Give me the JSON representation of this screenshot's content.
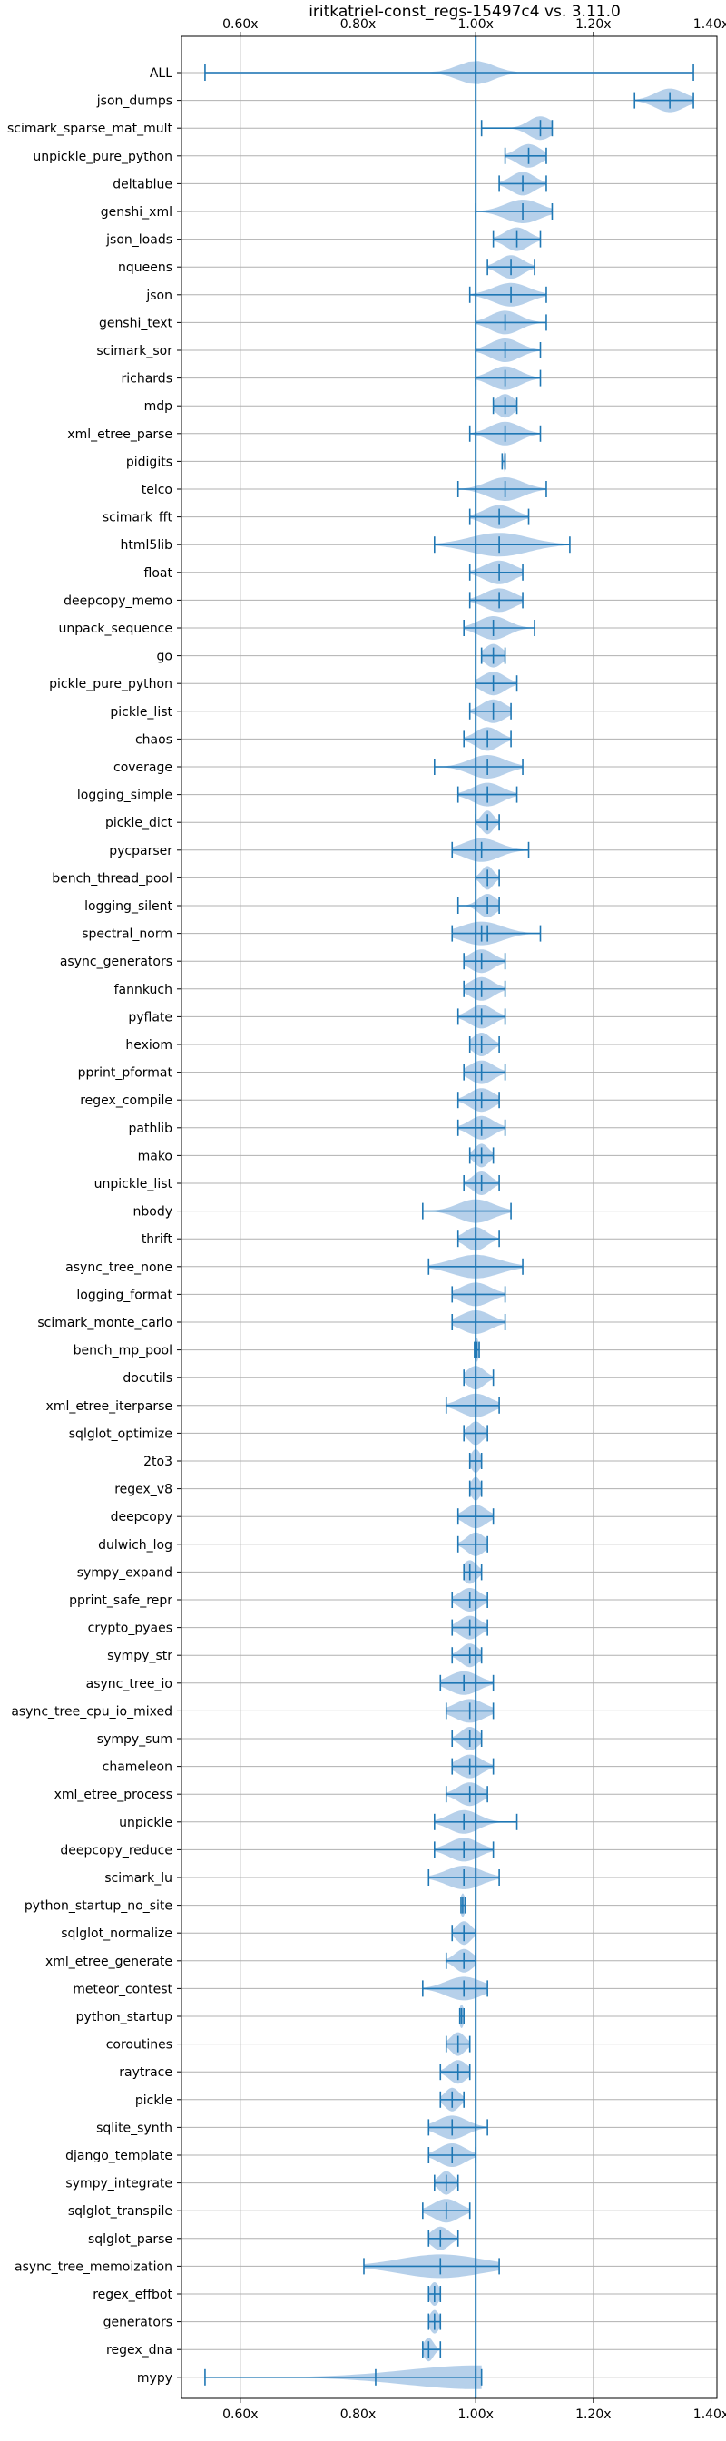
{
  "chart_data": {
    "type": "violin",
    "title": "iritkatriel-const_regs-15497c4 vs. 3.11.0",
    "xlim": [
      0.5,
      1.41
    ],
    "x_ticks": [
      {
        "value": 0.6,
        "label": "0.60x"
      },
      {
        "value": 0.8,
        "label": "0.80x"
      },
      {
        "value": 1.0,
        "label": "1.00x"
      },
      {
        "value": 1.2,
        "label": "1.20x"
      },
      {
        "value": 1.4,
        "label": "1.40x"
      }
    ],
    "reference_line": 1.0,
    "grid": true,
    "colors": {
      "line": "#1f77b4",
      "violin": "#a9c8e6",
      "grid": "#b0b0b0"
    },
    "benchmarks": [
      {
        "name": "ALL",
        "min": 0.54,
        "max": 1.37,
        "mean": 1.0,
        "median": 1.0,
        "spread": 0.03
      },
      {
        "name": "json_dumps",
        "min": 1.27,
        "max": 1.37,
        "mean": 1.33,
        "median": 1.33,
        "spread": 0.025
      },
      {
        "name": "scimark_sparse_mat_mult",
        "min": 1.01,
        "max": 1.13,
        "mean": 1.11,
        "median": 1.11,
        "spread": 0.02
      },
      {
        "name": "unpickle_pure_python",
        "min": 1.05,
        "max": 1.12,
        "mean": 1.09,
        "median": 1.09,
        "spread": 0.02
      },
      {
        "name": "deltablue",
        "min": 1.04,
        "max": 1.12,
        "mean": 1.08,
        "median": 1.08,
        "spread": 0.02
      },
      {
        "name": "genshi_xml",
        "min": 1.0,
        "max": 1.13,
        "mean": 1.08,
        "median": 1.08,
        "spread": 0.03
      },
      {
        "name": "json_loads",
        "min": 1.03,
        "max": 1.11,
        "mean": 1.07,
        "median": 1.07,
        "spread": 0.02
      },
      {
        "name": "nqueens",
        "min": 1.02,
        "max": 1.1,
        "mean": 1.06,
        "median": 1.06,
        "spread": 0.02
      },
      {
        "name": "json",
        "min": 0.99,
        "max": 1.12,
        "mean": 1.06,
        "median": 1.06,
        "spread": 0.03
      },
      {
        "name": "genshi_text",
        "min": 1.0,
        "max": 1.12,
        "mean": 1.05,
        "median": 1.05,
        "spread": 0.025
      },
      {
        "name": "scimark_sor",
        "min": 1.0,
        "max": 1.11,
        "mean": 1.05,
        "median": 1.05,
        "spread": 0.025
      },
      {
        "name": "richards",
        "min": 1.0,
        "max": 1.11,
        "mean": 1.05,
        "median": 1.05,
        "spread": 0.025
      },
      {
        "name": "mdp",
        "min": 1.03,
        "max": 1.07,
        "mean": 1.05,
        "median": 1.05,
        "spread": 0.015
      },
      {
        "name": "xml_etree_parse",
        "min": 0.99,
        "max": 1.11,
        "mean": 1.05,
        "median": 1.05,
        "spread": 0.025
      },
      {
        "name": "pidigits",
        "min": 1.045,
        "max": 1.05,
        "mean": 1.05,
        "median": 1.05,
        "spread": 0.002
      },
      {
        "name": "telco",
        "min": 0.97,
        "max": 1.12,
        "mean": 1.05,
        "median": 1.05,
        "spread": 0.03
      },
      {
        "name": "scimark_fft",
        "min": 0.99,
        "max": 1.09,
        "mean": 1.04,
        "median": 1.04,
        "spread": 0.025
      },
      {
        "name": "html5lib",
        "min": 0.93,
        "max": 1.16,
        "mean": 1.04,
        "median": 1.04,
        "spread": 0.05
      },
      {
        "name": "float",
        "min": 0.99,
        "max": 1.08,
        "mean": 1.04,
        "median": 1.04,
        "spread": 0.025
      },
      {
        "name": "deepcopy_memo",
        "min": 0.99,
        "max": 1.08,
        "mean": 1.04,
        "median": 1.04,
        "spread": 0.025
      },
      {
        "name": "unpack_sequence",
        "min": 0.98,
        "max": 1.1,
        "mean": 1.03,
        "median": 1.03,
        "spread": 0.025
      },
      {
        "name": "go",
        "min": 1.01,
        "max": 1.05,
        "mean": 1.03,
        "median": 1.03,
        "spread": 0.015
      },
      {
        "name": "pickle_pure_python",
        "min": 1.0,
        "max": 1.07,
        "mean": 1.03,
        "median": 1.03,
        "spread": 0.02
      },
      {
        "name": "pickle_list",
        "min": 0.99,
        "max": 1.06,
        "mean": 1.03,
        "median": 1.03,
        "spread": 0.02
      },
      {
        "name": "chaos",
        "min": 0.98,
        "max": 1.06,
        "mean": 1.02,
        "median": 1.02,
        "spread": 0.02
      },
      {
        "name": "coverage",
        "min": 0.93,
        "max": 1.08,
        "mean": 1.02,
        "median": 1.02,
        "spread": 0.03
      },
      {
        "name": "logging_simple",
        "min": 0.97,
        "max": 1.07,
        "mean": 1.02,
        "median": 1.02,
        "spread": 0.025
      },
      {
        "name": "pickle_dict",
        "min": 1.0,
        "max": 1.04,
        "mean": 1.02,
        "median": 1.02,
        "spread": 0.01
      },
      {
        "name": "pycparser",
        "min": 0.96,
        "max": 1.09,
        "mean": 1.01,
        "median": 1.01,
        "spread": 0.03
      },
      {
        "name": "bench_thread_pool",
        "min": 1.0,
        "max": 1.04,
        "mean": 1.02,
        "median": 1.02,
        "spread": 0.01
      },
      {
        "name": "logging_silent",
        "min": 0.97,
        "max": 1.04,
        "mean": 1.02,
        "median": 1.02,
        "spread": 0.015
      },
      {
        "name": "spectral_norm",
        "min": 0.96,
        "max": 1.11,
        "mean": 1.02,
        "median": 1.01,
        "spread": 0.035
      },
      {
        "name": "async_generators",
        "min": 0.98,
        "max": 1.05,
        "mean": 1.01,
        "median": 1.01,
        "spread": 0.02
      },
      {
        "name": "fannkuch",
        "min": 0.98,
        "max": 1.05,
        "mean": 1.01,
        "median": 1.01,
        "spread": 0.02
      },
      {
        "name": "pyflate",
        "min": 0.97,
        "max": 1.05,
        "mean": 1.01,
        "median": 1.01,
        "spread": 0.02
      },
      {
        "name": "hexiom",
        "min": 0.99,
        "max": 1.04,
        "mean": 1.01,
        "median": 1.01,
        "spread": 0.015
      },
      {
        "name": "pprint_pformat",
        "min": 0.98,
        "max": 1.05,
        "mean": 1.01,
        "median": 1.01,
        "spread": 0.02
      },
      {
        "name": "regex_compile",
        "min": 0.97,
        "max": 1.04,
        "mean": 1.01,
        "median": 1.01,
        "spread": 0.02
      },
      {
        "name": "pathlib",
        "min": 0.97,
        "max": 1.05,
        "mean": 1.01,
        "median": 1.01,
        "spread": 0.02
      },
      {
        "name": "mako",
        "min": 0.99,
        "max": 1.03,
        "mean": 1.01,
        "median": 1.01,
        "spread": 0.012
      },
      {
        "name": "unpickle_list",
        "min": 0.98,
        "max": 1.04,
        "mean": 1.01,
        "median": 1.01,
        "spread": 0.015
      },
      {
        "name": "nbody",
        "min": 0.91,
        "max": 1.06,
        "mean": 1.0,
        "median": 1.0,
        "spread": 0.03
      },
      {
        "name": "thrift",
        "min": 0.97,
        "max": 1.04,
        "mean": 1.0,
        "median": 1.0,
        "spread": 0.018
      },
      {
        "name": "async_tree_none",
        "min": 0.92,
        "max": 1.08,
        "mean": 1.0,
        "median": 1.0,
        "spread": 0.04
      },
      {
        "name": "logging_format",
        "min": 0.96,
        "max": 1.05,
        "mean": 1.0,
        "median": 1.0,
        "spread": 0.025
      },
      {
        "name": "scimark_monte_carlo",
        "min": 0.96,
        "max": 1.05,
        "mean": 1.0,
        "median": 1.0,
        "spread": 0.025
      },
      {
        "name": "bench_mp_pool",
        "min": 0.998,
        "max": 1.006,
        "mean": 1.002,
        "median": 1.002,
        "spread": 0.003
      },
      {
        "name": "docutils",
        "min": 0.98,
        "max": 1.03,
        "mean": 1.0,
        "median": 1.0,
        "spread": 0.015
      },
      {
        "name": "xml_etree_iterparse",
        "min": 0.95,
        "max": 1.04,
        "mean": 1.0,
        "median": 1.0,
        "spread": 0.025
      },
      {
        "name": "sqlglot_optimize",
        "min": 0.98,
        "max": 1.02,
        "mean": 1.0,
        "median": 1.0,
        "spread": 0.012
      },
      {
        "name": "2to3",
        "min": 0.99,
        "max": 1.01,
        "mean": 1.0,
        "median": 1.0,
        "spread": 0.008
      },
      {
        "name": "regex_v8",
        "min": 0.99,
        "max": 1.01,
        "mean": 1.0,
        "median": 1.0,
        "spread": 0.008
      },
      {
        "name": "deepcopy",
        "min": 0.97,
        "max": 1.03,
        "mean": 1.0,
        "median": 1.0,
        "spread": 0.018
      },
      {
        "name": "dulwich_log",
        "min": 0.97,
        "max": 1.02,
        "mean": 1.0,
        "median": 1.0,
        "spread": 0.015
      },
      {
        "name": "sympy_expand",
        "min": 0.98,
        "max": 1.01,
        "mean": 0.99,
        "median": 0.99,
        "spread": 0.012
      },
      {
        "name": "pprint_safe_repr",
        "min": 0.96,
        "max": 1.02,
        "mean": 0.99,
        "median": 0.99,
        "spread": 0.018
      },
      {
        "name": "crypto_pyaes",
        "min": 0.96,
        "max": 1.02,
        "mean": 0.99,
        "median": 0.99,
        "spread": 0.018
      },
      {
        "name": "sympy_str",
        "min": 0.96,
        "max": 1.01,
        "mean": 0.99,
        "median": 0.99,
        "spread": 0.015
      },
      {
        "name": "async_tree_io",
        "min": 0.94,
        "max": 1.03,
        "mean": 0.98,
        "median": 0.98,
        "spread": 0.025
      },
      {
        "name": "async_tree_cpu_io_mixed",
        "min": 0.95,
        "max": 1.03,
        "mean": 0.99,
        "median": 0.99,
        "spread": 0.025
      },
      {
        "name": "sympy_sum",
        "min": 0.96,
        "max": 1.01,
        "mean": 0.99,
        "median": 0.99,
        "spread": 0.015
      },
      {
        "name": "chameleon",
        "min": 0.96,
        "max": 1.03,
        "mean": 0.99,
        "median": 0.99,
        "spread": 0.02
      },
      {
        "name": "xml_etree_process",
        "min": 0.95,
        "max": 1.02,
        "mean": 0.99,
        "median": 0.99,
        "spread": 0.02
      },
      {
        "name": "unpickle",
        "min": 0.93,
        "max": 1.07,
        "mean": 0.98,
        "median": 0.98,
        "spread": 0.025
      },
      {
        "name": "deepcopy_reduce",
        "min": 0.93,
        "max": 1.03,
        "mean": 0.98,
        "median": 0.98,
        "spread": 0.025
      },
      {
        "name": "scimark_lu",
        "min": 0.92,
        "max": 1.04,
        "mean": 0.98,
        "median": 0.98,
        "spread": 0.03
      },
      {
        "name": "python_startup_no_site",
        "min": 0.975,
        "max": 0.982,
        "mean": 0.978,
        "median": 0.978,
        "spread": 0.004
      },
      {
        "name": "sqlglot_normalize",
        "min": 0.96,
        "max": 1.0,
        "mean": 0.98,
        "median": 0.98,
        "spread": 0.012
      },
      {
        "name": "xml_etree_generate",
        "min": 0.95,
        "max": 1.0,
        "mean": 0.98,
        "median": 0.98,
        "spread": 0.015
      },
      {
        "name": "meteor_contest",
        "min": 0.91,
        "max": 1.02,
        "mean": 0.98,
        "median": 0.98,
        "spread": 0.03
      },
      {
        "name": "python_startup",
        "min": 0.973,
        "max": 0.98,
        "mean": 0.976,
        "median": 0.976,
        "spread": 0.004
      },
      {
        "name": "coroutines",
        "min": 0.95,
        "max": 0.99,
        "mean": 0.97,
        "median": 0.97,
        "spread": 0.012
      },
      {
        "name": "raytrace",
        "min": 0.94,
        "max": 0.99,
        "mean": 0.97,
        "median": 0.97,
        "spread": 0.015
      },
      {
        "name": "pickle",
        "min": 0.94,
        "max": 0.98,
        "mean": 0.96,
        "median": 0.96,
        "spread": 0.012
      },
      {
        "name": "sqlite_synth",
        "min": 0.92,
        "max": 1.02,
        "mean": 0.96,
        "median": 0.96,
        "spread": 0.025
      },
      {
        "name": "django_template",
        "min": 0.92,
        "max": 1.0,
        "mean": 0.96,
        "median": 0.96,
        "spread": 0.022
      },
      {
        "name": "sympy_integrate",
        "min": 0.93,
        "max": 0.97,
        "mean": 0.95,
        "median": 0.95,
        "spread": 0.012
      },
      {
        "name": "sqlglot_transpile",
        "min": 0.91,
        "max": 0.99,
        "mean": 0.95,
        "median": 0.95,
        "spread": 0.022
      },
      {
        "name": "sqlglot_parse",
        "min": 0.92,
        "max": 0.97,
        "mean": 0.94,
        "median": 0.94,
        "spread": 0.015
      },
      {
        "name": "async_tree_memoization",
        "min": 0.81,
        "max": 1.04,
        "mean": 0.94,
        "median": 0.94,
        "spread": 0.07
      },
      {
        "name": "regex_effbot",
        "min": 0.92,
        "max": 0.94,
        "mean": 0.93,
        "median": 0.93,
        "spread": 0.008
      },
      {
        "name": "generators",
        "min": 0.92,
        "max": 0.94,
        "mean": 0.93,
        "median": 0.93,
        "spread": 0.008
      },
      {
        "name": "regex_dna",
        "min": 0.91,
        "max": 0.94,
        "mean": 0.92,
        "median": 0.92,
        "spread": 0.008
      },
      {
        "name": "mypy",
        "min": 0.54,
        "max": 1.01,
        "mean": 0.83,
        "median": 1.0,
        "spread": 0.12
      }
    ]
  }
}
